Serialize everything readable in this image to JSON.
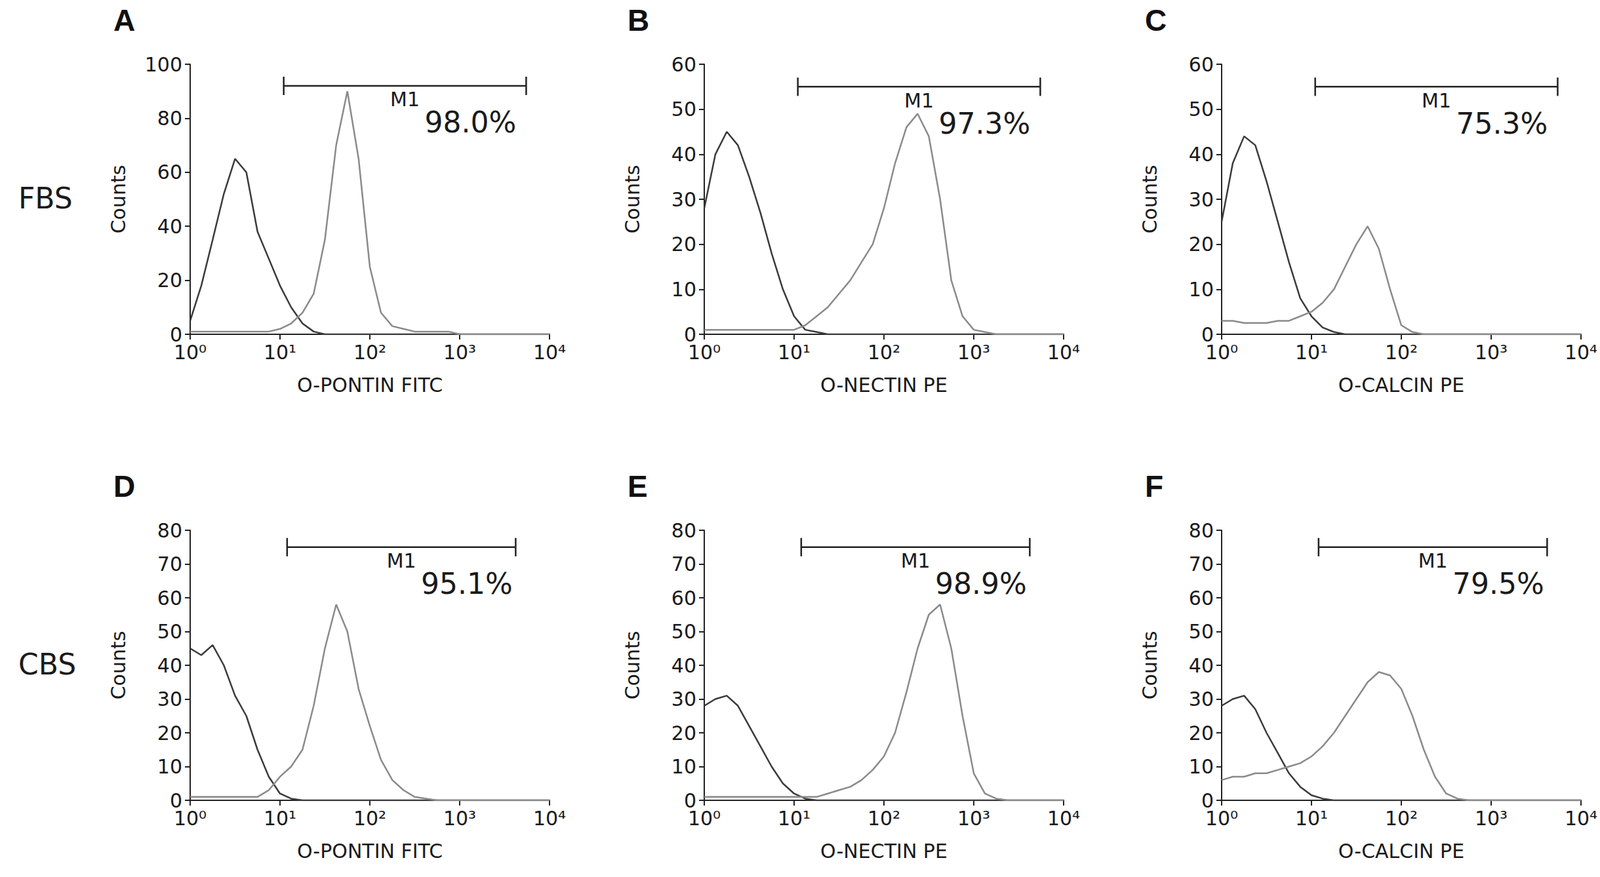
{
  "chart_data": [
    {
      "type": "line",
      "title": "A",
      "row_label": "FBS",
      "x": [
        1,
        1.33,
        1.78,
        2.37,
        3.16,
        4.22,
        5.62,
        7.5,
        10,
        13.3,
        17.8,
        23.7,
        31.6,
        42.2,
        56.2,
        75,
        100,
        133,
        178,
        237,
        316,
        422,
        562,
        750,
        1000,
        1330,
        1780,
        2370,
        3160,
        4220,
        5620,
        7500,
        10000
      ],
      "series": [
        {
          "color": "#3a3a3a",
          "values": [
            5,
            18,
            35,
            52,
            65,
            60,
            38,
            28,
            18,
            10,
            4,
            1,
            0,
            0,
            0,
            0,
            0,
            0,
            0,
            0,
            0,
            0,
            0,
            0,
            0,
            0,
            0,
            0,
            0,
            0,
            0,
            0,
            0
          ]
        },
        {
          "color": "#8a8a8a",
          "values": [
            1,
            1,
            1,
            1,
            1,
            1,
            1,
            1,
            2,
            4,
            8,
            15,
            35,
            70,
            90,
            65,
            25,
            8,
            3,
            2,
            1,
            1,
            1,
            1,
            0,
            0,
            0,
            0,
            0,
            0,
            0,
            0,
            0
          ]
        }
      ],
      "x_label": "O-PONTIN FITC",
      "y_label": "Counts",
      "xlim": [
        1,
        10000
      ],
      "xticks": [
        {
          "value": 1,
          "label": "10⁰"
        },
        {
          "value": 10,
          "label": "10¹"
        },
        {
          "value": 100,
          "label": "10²"
        },
        {
          "value": 1000,
          "label": "10³"
        },
        {
          "value": 10000,
          "label": "10⁴"
        }
      ],
      "ylim": [
        0,
        100
      ],
      "yticks": [
        0,
        20,
        40,
        60,
        80,
        100
      ],
      "log": "x",
      "grid": false,
      "gate": {
        "label": "M1",
        "x": [
          11,
          5500
        ],
        "y": 92,
        "annotation": "98.0%"
      }
    },
    {
      "type": "line",
      "title": "B",
      "x": [
        1,
        1.33,
        1.78,
        2.37,
        3.16,
        4.22,
        5.62,
        7.5,
        10,
        13.3,
        17.8,
        23.7,
        31.6,
        42.2,
        56.2,
        75,
        100,
        133,
        178,
        237,
        316,
        422,
        562,
        750,
        1000,
        1330,
        1780,
        2370,
        3160,
        4220,
        5620,
        7500,
        10000
      ],
      "series": [
        {
          "color": "#3a3a3a",
          "values": [
            28,
            40,
            45,
            42,
            35,
            27,
            18,
            10,
            4,
            1,
            0.5,
            0,
            0,
            0,
            0,
            0,
            0,
            0,
            0,
            0,
            0,
            0,
            0,
            0,
            0,
            0,
            0,
            0,
            0,
            0,
            0,
            0,
            0
          ]
        },
        {
          "color": "#8a8a8a",
          "values": [
            1,
            1,
            1,
            1,
            1,
            1,
            1,
            1,
            1,
            2,
            4,
            6,
            9,
            12,
            16,
            20,
            28,
            38,
            46,
            49,
            44,
            30,
            12,
            4,
            1,
            0.5,
            0,
            0,
            0,
            0,
            0,
            0,
            0
          ]
        }
      ],
      "x_label": "O-NECTIN PE",
      "y_label": "Counts",
      "xlim": [
        1,
        10000
      ],
      "xticks": [
        {
          "value": 1,
          "label": "10⁰"
        },
        {
          "value": 10,
          "label": "10¹"
        },
        {
          "value": 100,
          "label": "10²"
        },
        {
          "value": 1000,
          "label": "10³"
        },
        {
          "value": 10000,
          "label": "10⁴"
        }
      ],
      "ylim": [
        0,
        60
      ],
      "yticks": [
        0,
        10,
        20,
        30,
        40,
        50,
        60
      ],
      "log": "x",
      "grid": false,
      "gate": {
        "label": "M1",
        "x": [
          11,
          5500
        ],
        "y": 55,
        "annotation": "97.3%"
      }
    },
    {
      "type": "line",
      "title": "C",
      "x": [
        1,
        1.33,
        1.78,
        2.37,
        3.16,
        4.22,
        5.62,
        7.5,
        10,
        13.3,
        17.8,
        23.7,
        31.6,
        42.2,
        56.2,
        75,
        100,
        133,
        178,
        237,
        316,
        422,
        562,
        750,
        1000,
        1330,
        1780,
        2370,
        3160,
        4220,
        5620,
        7500,
        10000
      ],
      "series": [
        {
          "color": "#3a3a3a",
          "values": [
            25,
            38,
            44,
            42,
            34,
            25,
            16,
            8,
            4,
            1.5,
            0.5,
            0,
            0,
            0,
            0,
            0,
            0,
            0,
            0,
            0,
            0,
            0,
            0,
            0,
            0,
            0,
            0,
            0,
            0,
            0,
            0,
            0,
            0
          ]
        },
        {
          "color": "#8a8a8a",
          "values": [
            3,
            3,
            2.5,
            2.5,
            2.5,
            3,
            3,
            4,
            5,
            7,
            10,
            15,
            20,
            24,
            19,
            10,
            2,
            0.5,
            0,
            0,
            0,
            0,
            0,
            0,
            0,
            0,
            0,
            0,
            0,
            0,
            0,
            0,
            0
          ]
        }
      ],
      "x_label": "O-CALCIN PE",
      "y_label": "Counts",
      "xlim": [
        1,
        10000
      ],
      "xticks": [
        {
          "value": 1,
          "label": "10⁰"
        },
        {
          "value": 10,
          "label": "10¹"
        },
        {
          "value": 100,
          "label": "10²"
        },
        {
          "value": 1000,
          "label": "10³"
        },
        {
          "value": 10000,
          "label": "10⁴"
        }
      ],
      "ylim": [
        0,
        60
      ],
      "yticks": [
        0,
        10,
        20,
        30,
        40,
        50,
        60
      ],
      "log": "x",
      "grid": false,
      "gate": {
        "label": "M1",
        "x": [
          11,
          5500
        ],
        "y": 55,
        "annotation": "75.3%"
      }
    },
    {
      "type": "line",
      "title": "D",
      "row_label": "CBS",
      "x": [
        1,
        1.33,
        1.78,
        2.37,
        3.16,
        4.22,
        5.62,
        7.5,
        10,
        13.3,
        17.8,
        23.7,
        31.6,
        42.2,
        56.2,
        75,
        100,
        133,
        178,
        237,
        316,
        422,
        562,
        750,
        1000,
        1330,
        1780,
        2370,
        3160,
        4220,
        5620,
        7500,
        10000
      ],
      "series": [
        {
          "color": "#3a3a3a",
          "values": [
            45,
            43,
            46,
            40,
            31,
            25,
            15,
            7,
            2,
            0.5,
            0,
            0,
            0,
            0,
            0,
            0,
            0,
            0,
            0,
            0,
            0,
            0,
            0,
            0,
            0,
            0,
            0,
            0,
            0,
            0,
            0,
            0,
            0
          ]
        },
        {
          "color": "#8a8a8a",
          "values": [
            1,
            1,
            1,
            1,
            1,
            1,
            1,
            3,
            7,
            10,
            15,
            28,
            45,
            58,
            50,
            33,
            22,
            12,
            6,
            3,
            1,
            0.5,
            0,
            0,
            0,
            0,
            0,
            0,
            0,
            0,
            0,
            0,
            0
          ]
        }
      ],
      "x_label": "O-PONTIN FITC",
      "y_label": "Counts",
      "xlim": [
        1,
        10000
      ],
      "xticks": [
        {
          "value": 1,
          "label": "10⁰"
        },
        {
          "value": 10,
          "label": "10¹"
        },
        {
          "value": 100,
          "label": "10²"
        },
        {
          "value": 1000,
          "label": "10³"
        },
        {
          "value": 10000,
          "label": "10⁴"
        }
      ],
      "ylim": [
        0,
        80
      ],
      "yticks": [
        0,
        10,
        20,
        30,
        40,
        50,
        60,
        70,
        80
      ],
      "log": "x",
      "grid": false,
      "gate": {
        "label": "M1",
        "x": [
          12,
          4200
        ],
        "y": 75,
        "annotation": "95.1%"
      }
    },
    {
      "type": "line",
      "title": "E",
      "x": [
        1,
        1.33,
        1.78,
        2.37,
        3.16,
        4.22,
        5.62,
        7.5,
        10,
        13.3,
        17.8,
        23.7,
        31.6,
        42.2,
        56.2,
        75,
        100,
        133,
        178,
        237,
        316,
        422,
        562,
        750,
        1000,
        1330,
        1780,
        2370,
        3160,
        4220,
        5620,
        7500,
        10000
      ],
      "series": [
        {
          "color": "#3a3a3a",
          "values": [
            28,
            30,
            31,
            28,
            22,
            16,
            10,
            5,
            2,
            0.5,
            0,
            0,
            0,
            0,
            0,
            0,
            0,
            0,
            0,
            0,
            0,
            0,
            0,
            0,
            0,
            0,
            0,
            0,
            0,
            0,
            0,
            0,
            0
          ]
        },
        {
          "color": "#8a8a8a",
          "values": [
            1,
            1,
            1,
            1,
            1,
            1,
            1,
            1,
            1,
            1,
            1,
            2,
            3,
            4,
            6,
            9,
            13,
            20,
            32,
            45,
            55,
            58,
            45,
            25,
            8,
            2,
            0.5,
            0,
            0,
            0,
            0,
            0,
            0
          ]
        }
      ],
      "x_label": "O-NECTIN PE",
      "y_label": "Counts",
      "xlim": [
        1,
        10000
      ],
      "xticks": [
        {
          "value": 1,
          "label": "10⁰"
        },
        {
          "value": 10,
          "label": "10¹"
        },
        {
          "value": 100,
          "label": "10²"
        },
        {
          "value": 1000,
          "label": "10³"
        },
        {
          "value": 10000,
          "label": "10⁴"
        }
      ],
      "ylim": [
        0,
        80
      ],
      "yticks": [
        0,
        10,
        20,
        30,
        40,
        50,
        60,
        70,
        80
      ],
      "log": "x",
      "grid": false,
      "gate": {
        "label": "M1",
        "x": [
          12,
          4200
        ],
        "y": 75,
        "annotation": "98.9%"
      }
    },
    {
      "type": "line",
      "title": "F",
      "x": [
        1,
        1.33,
        1.78,
        2.37,
        3.16,
        4.22,
        5.62,
        7.5,
        10,
        13.3,
        17.8,
        23.7,
        31.6,
        42.2,
        56.2,
        75,
        100,
        133,
        178,
        237,
        316,
        422,
        562,
        750,
        1000,
        1330,
        1780,
        2370,
        3160,
        4220,
        5620,
        7500,
        10000
      ],
      "series": [
        {
          "color": "#3a3a3a",
          "values": [
            28,
            30,
            31,
            27,
            20,
            14,
            8,
            4,
            1.5,
            0.5,
            0,
            0,
            0,
            0,
            0,
            0,
            0,
            0,
            0,
            0,
            0,
            0,
            0,
            0,
            0,
            0,
            0,
            0,
            0,
            0,
            0,
            0,
            0
          ]
        },
        {
          "color": "#8a8a8a",
          "values": [
            6,
            7,
            7,
            8,
            8,
            9,
            10,
            11,
            13,
            16,
            20,
            25,
            30,
            35,
            38,
            37,
            33,
            25,
            15,
            7,
            2,
            0.5,
            0,
            0,
            0,
            0,
            0,
            0,
            0,
            0,
            0,
            0,
            0
          ]
        }
      ],
      "x_label": "O-CALCIN PE",
      "y_label": "Counts",
      "xlim": [
        1,
        10000
      ],
      "xticks": [
        {
          "value": 1,
          "label": "10⁰"
        },
        {
          "value": 10,
          "label": "10¹"
        },
        {
          "value": 100,
          "label": "10²"
        },
        {
          "value": 1000,
          "label": "10³"
        },
        {
          "value": 10000,
          "label": "10⁴"
        }
      ],
      "ylim": [
        0,
        80
      ],
      "yticks": [
        0,
        10,
        20,
        30,
        40,
        50,
        60,
        70,
        80
      ],
      "log": "x",
      "grid": false,
      "gate": {
        "label": "M1",
        "x": [
          12,
          4200
        ],
        "y": 75,
        "annotation": "79.5%"
      }
    }
  ]
}
